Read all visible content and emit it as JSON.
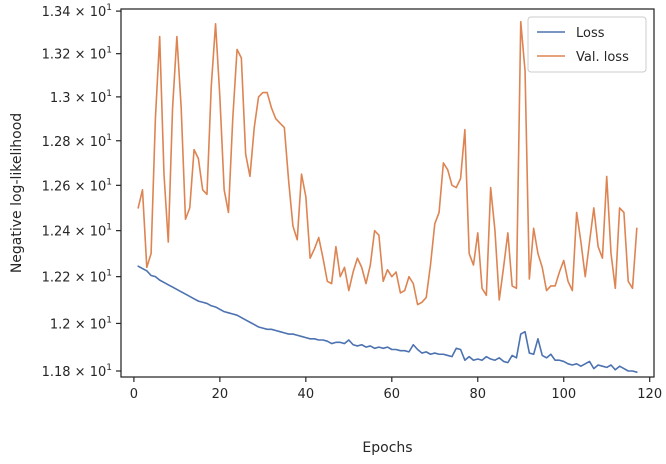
{
  "chart_data": {
    "type": "line",
    "xlabel": "Epochs",
    "ylabel": "Negative log-likelihood",
    "xlim": [
      -3,
      121
    ],
    "ylim": [
      11.775,
      13.41
    ],
    "yscale": "log",
    "grid": false,
    "legend_position": "top-right",
    "x_ticks": [
      0,
      20,
      40,
      60,
      80,
      100,
      120
    ],
    "x_tick_labels": [
      "0",
      "20",
      "40",
      "60",
      "80",
      "100",
      "120"
    ],
    "y_ticks": [
      11.8,
      12.0,
      12.2,
      12.4,
      12.6,
      12.8,
      13.0,
      13.2,
      13.4
    ],
    "y_tick_labels": [
      {
        "mantissa": "1.18",
        "exp": "1"
      },
      {
        "mantissa": "1.2",
        "exp": "1"
      },
      {
        "mantissa": "1.22",
        "exp": "1"
      },
      {
        "mantissa": "1.24",
        "exp": "1"
      },
      {
        "mantissa": "1.26",
        "exp": "1"
      },
      {
        "mantissa": "1.28",
        "exp": "1"
      },
      {
        "mantissa": "1.3",
        "exp": "1"
      },
      {
        "mantissa": "1.32",
        "exp": "1"
      },
      {
        "mantissa": "1.34",
        "exp": "1"
      }
    ],
    "series": [
      {
        "name": "Loss",
        "color": "#4c72b0",
        "x": [
          1,
          2,
          3,
          4,
          5,
          6,
          7,
          8,
          9,
          10,
          11,
          12,
          13,
          14,
          15,
          16,
          17,
          18,
          19,
          20,
          21,
          22,
          23,
          24,
          25,
          26,
          27,
          28,
          29,
          30,
          31,
          32,
          33,
          34,
          35,
          36,
          37,
          38,
          39,
          40,
          41,
          42,
          43,
          44,
          45,
          46,
          47,
          48,
          49,
          50,
          51,
          52,
          53,
          54,
          55,
          56,
          57,
          58,
          59,
          60,
          61,
          62,
          63,
          64,
          65,
          66,
          67,
          68,
          69,
          70,
          71,
          72,
          73,
          74,
          75,
          76,
          77,
          78,
          79,
          80,
          81,
          82,
          83,
          84,
          85,
          86,
          87,
          88,
          89,
          90,
          91,
          92,
          93,
          94,
          95,
          96,
          97,
          98,
          99,
          100,
          101,
          102,
          103,
          104,
          105,
          106,
          107,
          108,
          109,
          110,
          111,
          112,
          113,
          114,
          115,
          116,
          117
        ],
        "values": [
          12.245,
          12.235,
          12.225,
          12.205,
          12.2,
          12.185,
          12.175,
          12.165,
          12.155,
          12.145,
          12.135,
          12.125,
          12.115,
          12.105,
          12.095,
          12.09,
          12.085,
          12.075,
          12.07,
          12.06,
          12.05,
          12.045,
          12.04,
          12.035,
          12.025,
          12.015,
          12.005,
          11.995,
          11.985,
          11.98,
          11.975,
          11.975,
          11.97,
          11.965,
          11.96,
          11.955,
          11.955,
          11.95,
          11.945,
          11.94,
          11.935,
          11.935,
          11.93,
          11.93,
          11.925,
          11.915,
          11.92,
          11.92,
          11.915,
          11.93,
          11.91,
          11.905,
          11.91,
          11.9,
          11.905,
          11.895,
          11.9,
          11.895,
          11.9,
          11.89,
          11.89,
          11.885,
          11.885,
          11.88,
          11.91,
          11.89,
          11.875,
          11.88,
          11.87,
          11.875,
          11.87,
          11.87,
          11.865,
          11.86,
          11.895,
          11.89,
          11.845,
          11.86,
          11.845,
          11.85,
          11.845,
          11.86,
          11.85,
          11.845,
          11.855,
          11.84,
          11.835,
          11.865,
          11.855,
          11.955,
          11.965,
          11.875,
          11.87,
          11.935,
          11.865,
          11.855,
          11.87,
          11.845,
          11.845,
          11.84,
          11.83,
          11.825,
          11.83,
          11.82,
          11.83,
          11.84,
          11.81,
          11.825,
          11.82,
          11.815,
          11.825,
          11.805,
          11.82,
          11.81,
          11.8,
          11.8,
          11.795
        ]
      },
      {
        "name": "Val. loss",
        "color": "#dd8452",
        "x": [
          1,
          2,
          3,
          4,
          5,
          6,
          7,
          8,
          9,
          10,
          11,
          12,
          13,
          14,
          15,
          16,
          17,
          18,
          19,
          20,
          21,
          22,
          23,
          24,
          25,
          26,
          27,
          28,
          29,
          30,
          31,
          32,
          33,
          34,
          35,
          36,
          37,
          38,
          39,
          40,
          41,
          42,
          43,
          44,
          45,
          46,
          47,
          48,
          49,
          50,
          51,
          52,
          53,
          54,
          55,
          56,
          57,
          58,
          59,
          60,
          61,
          62,
          63,
          64,
          65,
          66,
          67,
          68,
          69,
          70,
          71,
          72,
          73,
          74,
          75,
          76,
          77,
          78,
          79,
          80,
          81,
          82,
          83,
          84,
          85,
          86,
          87,
          88,
          89,
          90,
          91,
          92,
          93,
          94,
          95,
          96,
          97,
          98,
          99,
          100,
          101,
          102,
          103,
          104,
          105,
          106,
          107,
          108,
          109,
          110,
          111,
          112,
          113,
          114,
          115,
          116,
          117
        ],
        "values": [
          12.5,
          12.58,
          12.24,
          12.3,
          12.9,
          13.28,
          12.65,
          12.35,
          12.95,
          13.28,
          12.95,
          12.45,
          12.5,
          12.76,
          12.72,
          12.58,
          12.56,
          13.05,
          13.34,
          13.0,
          12.58,
          12.48,
          12.9,
          13.22,
          13.18,
          12.74,
          12.64,
          12.86,
          13.0,
          13.02,
          13.02,
          12.95,
          12.9,
          12.88,
          12.86,
          12.62,
          12.42,
          12.36,
          12.65,
          12.55,
          12.28,
          12.32,
          12.37,
          12.28,
          12.18,
          12.17,
          12.33,
          12.2,
          12.24,
          12.14,
          12.22,
          12.28,
          12.24,
          12.17,
          12.25,
          12.4,
          12.38,
          12.18,
          12.23,
          12.2,
          12.22,
          12.13,
          12.14,
          12.2,
          12.17,
          12.08,
          12.09,
          12.11,
          12.25,
          12.43,
          12.48,
          12.7,
          12.67,
          12.6,
          12.59,
          12.63,
          12.85,
          12.3,
          12.25,
          12.39,
          12.15,
          12.12,
          12.59,
          12.4,
          12.1,
          12.24,
          12.39,
          12.16,
          12.15,
          13.35,
          13.12,
          12.19,
          12.41,
          12.3,
          12.24,
          12.14,
          12.16,
          12.16,
          12.22,
          12.27,
          12.18,
          12.14,
          12.48,
          12.35,
          12.2,
          12.35,
          12.5,
          12.33,
          12.28,
          12.64,
          12.3,
          12.15,
          12.5,
          12.48,
          12.18,
          12.15,
          12.41
        ]
      }
    ]
  }
}
